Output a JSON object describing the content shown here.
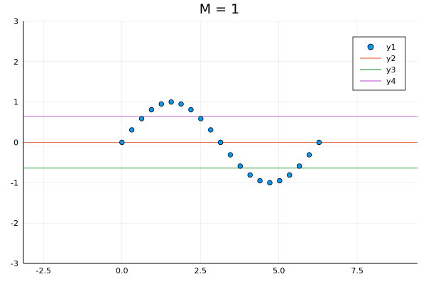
{
  "chart_data": {
    "type": "scatter",
    "title": "M = 1",
    "xlabel": "",
    "ylabel": "",
    "xlim": [
      -3.14,
      9.42
    ],
    "ylim": [
      -3,
      3
    ],
    "xticks": [
      -2.5,
      0.0,
      2.5,
      5.0,
      7.5
    ],
    "xtick_labels": [
      "-2.5",
      "0.0",
      "2.5",
      "5.0",
      "7.5"
    ],
    "yticks": [
      -3,
      -2,
      -1,
      0,
      1,
      2,
      3
    ],
    "ytick_labels": [
      "-3",
      "-2",
      "-1",
      "0",
      "1",
      "2",
      "3"
    ],
    "grid": true,
    "legend_position": "top-right",
    "series": [
      {
        "name": "y1",
        "kind": "scatter",
        "color": "#009AFA",
        "x": [
          0.0,
          0.3142,
          0.6283,
          0.9425,
          1.2566,
          1.5708,
          1.885,
          2.1991,
          2.5133,
          2.8274,
          3.1416,
          3.4558,
          3.7699,
          4.0841,
          4.3982,
          4.7124,
          5.0265,
          5.3407,
          5.6549,
          5.969,
          6.2832
        ],
        "y": [
          0.0,
          0.309,
          0.588,
          0.809,
          0.951,
          1.0,
          0.951,
          0.809,
          0.588,
          0.309,
          0.0,
          -0.309,
          -0.588,
          -0.809,
          -0.951,
          -1.0,
          -0.951,
          -0.809,
          -0.588,
          -0.309,
          0.0
        ]
      },
      {
        "name": "y2",
        "kind": "hline",
        "color": "#E36F47",
        "y": 0.0
      },
      {
        "name": "y3",
        "kind": "hline",
        "color": "#3EA44E",
        "y": -0.637
      },
      {
        "name": "y4",
        "kind": "hline",
        "color": "#C271D2",
        "y": 0.637
      }
    ]
  }
}
